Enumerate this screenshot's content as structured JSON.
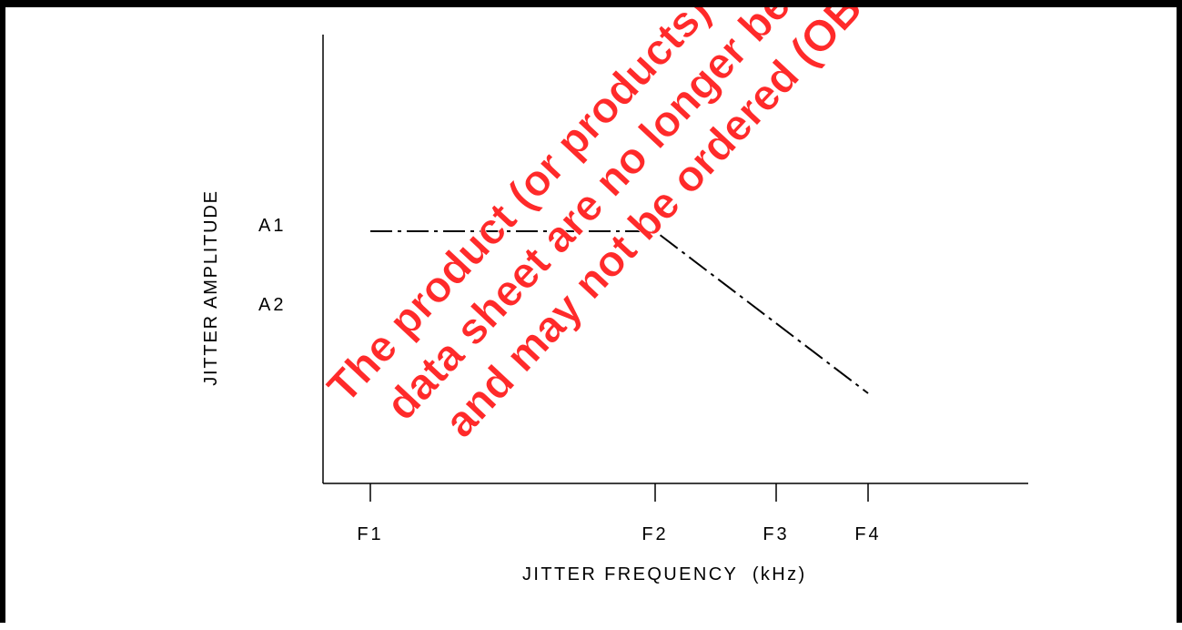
{
  "chart_data": {
    "type": "line",
    "xlabel": "JITTER FREQUENCY  (kHz)",
    "ylabel": "JITTER AMPLITUDE",
    "x_ticks": [
      "F1",
      "F2",
      "F3",
      "F4"
    ],
    "y_ticks": [
      "A1",
      "A2"
    ],
    "series": [
      {
        "points": [
          {
            "x": "F1",
            "y": "A1"
          },
          {
            "x": "F2",
            "y": "A1"
          },
          {
            "x": "F4",
            "y": "below A2"
          }
        ],
        "line_style": "dash-dot"
      }
    ]
  },
  "watermark": {
    "lines": [
      "The product (or products) ...",
      "data sheet are no longer be...",
      "and may not be ordered (OBS..."
    ],
    "color": "#ff2a2a"
  }
}
